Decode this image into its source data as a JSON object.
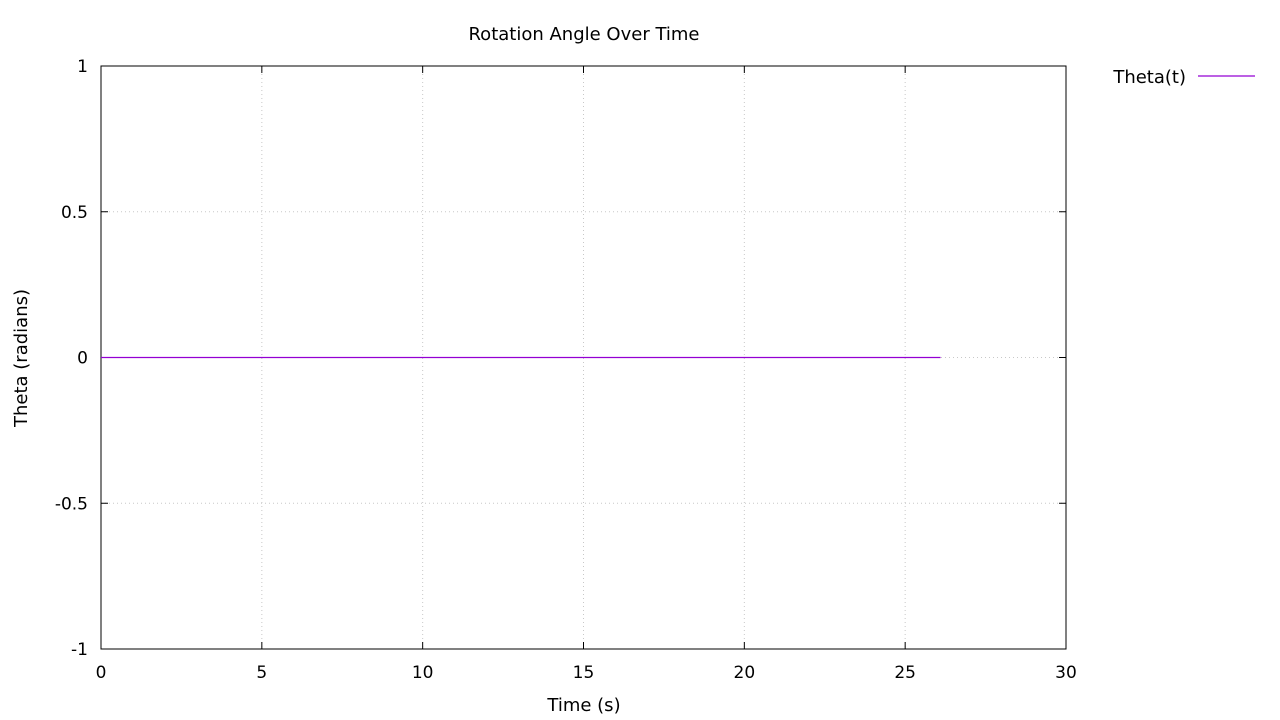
{
  "chart_data": {
    "type": "line",
    "title": "Rotation Angle Over Time",
    "xlabel": "Time (s)",
    "ylabel": "Theta (radians)",
    "xlim": [
      0,
      30
    ],
    "ylim": [
      -1,
      1
    ],
    "xticks": [
      0,
      5,
      10,
      15,
      20,
      25,
      30
    ],
    "xtick_labels": [
      "0",
      "5",
      "10",
      "15",
      "20",
      "25",
      "30"
    ],
    "yticks": [
      -1,
      -0.5,
      0,
      0.5,
      1
    ],
    "ytick_labels": [
      "-1",
      "-0.5",
      "0",
      "0.5",
      "1"
    ],
    "grid": true,
    "legend_position": "top-right-outside",
    "series": [
      {
        "name": "Theta(t)",
        "color": "#9400d3",
        "x": [
          0,
          26.1
        ],
        "y": [
          0,
          0
        ]
      }
    ]
  }
}
